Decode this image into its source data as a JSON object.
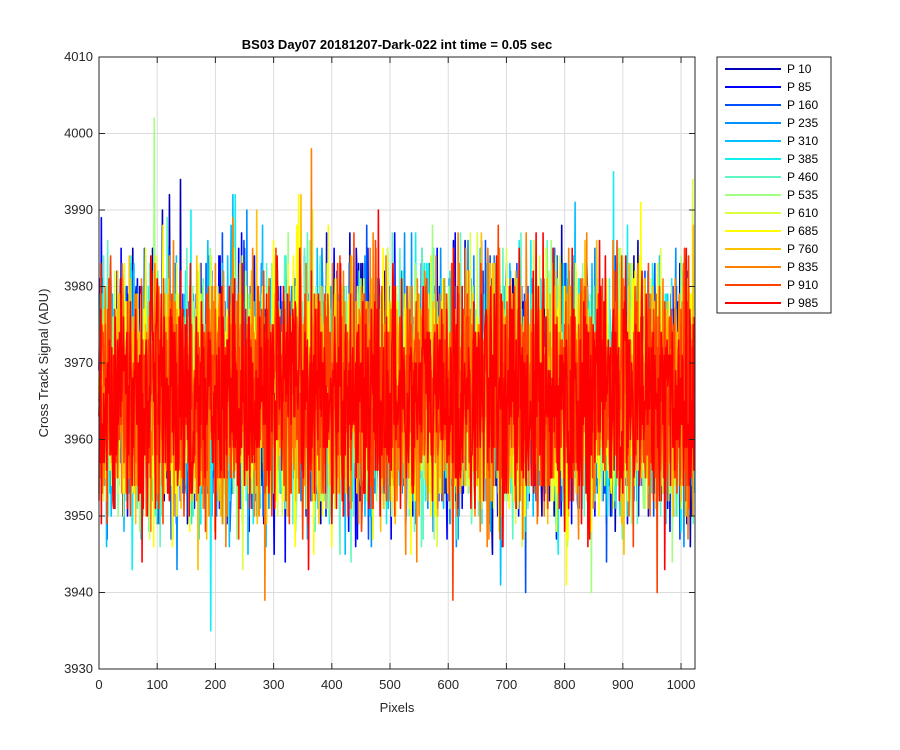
{
  "chart_data": {
    "type": "line",
    "title": "BS03 Day07 20181207-Dark-022 int time = 0.05 sec",
    "xlabel": "Pixels",
    "ylabel": "Cross Track Signal (ADU)",
    "xlim": [
      0,
      1024
    ],
    "ylim": [
      3930,
      4010
    ],
    "xticks": [
      0,
      100,
      200,
      300,
      400,
      500,
      600,
      700,
      800,
      900,
      1000
    ],
    "yticks": [
      3930,
      3940,
      3950,
      3960,
      3970,
      3980,
      3990,
      4000,
      4010
    ],
    "grid": true,
    "legend_position": "outside-top-right",
    "pixel_count": 1024,
    "noise": {
      "mean": 3966,
      "std": 7.5
    },
    "series": [
      {
        "name": "P 10",
        "color": "#0000b4"
      },
      {
        "name": "P 85",
        "color": "#0000ff"
      },
      {
        "name": "P 160",
        "color": "#0050ff"
      },
      {
        "name": "P 235",
        "color": "#0090ff"
      },
      {
        "name": "P 310",
        "color": "#00c0ff"
      },
      {
        "name": "P 385",
        "color": "#10f0f0"
      },
      {
        "name": "P 460",
        "color": "#60f8c0"
      },
      {
        "name": "P 535",
        "color": "#a0ff80"
      },
      {
        "name": "P 610",
        "color": "#d8ff40"
      },
      {
        "name": "P 685",
        "color": "#ffff00"
      },
      {
        "name": "P 760",
        "color": "#ffc000"
      },
      {
        "name": "P 835",
        "color": "#ff8000"
      },
      {
        "name": "P 910",
        "color": "#ff4000"
      },
      {
        "name": "P 985",
        "color": "#ff0000"
      }
    ],
    "peaks": [
      {
        "x": 95,
        "y": 4002,
        "series": "P 535"
      },
      {
        "x": 140,
        "y": 3994,
        "series": "P 10"
      },
      {
        "x": 365,
        "y": 3998,
        "series": "P 835"
      },
      {
        "x": 884,
        "y": 3995,
        "series": "P 385"
      },
      {
        "x": 1020,
        "y": 3994,
        "series": "P 610"
      },
      {
        "x": 192,
        "y": 3935,
        "series": "P 385"
      },
      {
        "x": 285,
        "y": 3939,
        "series": "P 835"
      },
      {
        "x": 608,
        "y": 3939,
        "series": "P 910"
      },
      {
        "x": 972,
        "y": 3943,
        "series": "P 985"
      }
    ]
  }
}
